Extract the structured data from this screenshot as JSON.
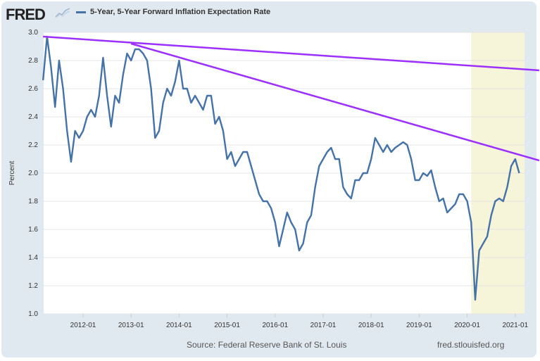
{
  "header": {
    "logo": "FRED",
    "logo_icon": "line-chart-icon"
  },
  "footer": {
    "source": "Source: Federal Reserve Bank of St. Louis",
    "site": "fred.stlouisfed.org"
  },
  "chart_data": {
    "type": "line",
    "title": "",
    "ylabel": "Percent",
    "xlabel": "",
    "ylim": [
      1.0,
      3.0
    ],
    "yticks": [
      "1.0",
      "1.2",
      "1.4",
      "1.6",
      "1.8",
      "2.0",
      "2.2",
      "2.4",
      "2.6",
      "2.8",
      "3.0"
    ],
    "xticks": [
      "2012-01",
      "2013-01",
      "2014-01",
      "2015-01",
      "2016-01",
      "2017-01",
      "2018-01",
      "2019-01",
      "2020-01",
      "2021-01"
    ],
    "xlim": [
      "2011-03",
      "2021-02"
    ],
    "grid": "horizontal",
    "legend": "top-left",
    "shaded_region": {
      "start": "2020-02",
      "end": "2021-02",
      "color": "#f6f5d9"
    },
    "colors": {
      "series": "#4572a7",
      "trendline": "#9b30ff"
    },
    "series": [
      {
        "name": "5-Year, 5-Year Forward Inflation Expectation Rate",
        "x": [
          "2011-03",
          "2011-04",
          "2011-05",
          "2011-06",
          "2011-07",
          "2011-08",
          "2011-09",
          "2011-10",
          "2011-11",
          "2011-12",
          "2012-01",
          "2012-02",
          "2012-03",
          "2012-04",
          "2012-05",
          "2012-06",
          "2012-07",
          "2012-08",
          "2012-09",
          "2012-10",
          "2012-11",
          "2012-12",
          "2013-01",
          "2013-02",
          "2013-03",
          "2013-04",
          "2013-05",
          "2013-06",
          "2013-07",
          "2013-08",
          "2013-09",
          "2013-10",
          "2013-11",
          "2013-12",
          "2014-01",
          "2014-02",
          "2014-03",
          "2014-04",
          "2014-05",
          "2014-06",
          "2014-07",
          "2014-08",
          "2014-09",
          "2014-10",
          "2014-11",
          "2014-12",
          "2015-01",
          "2015-02",
          "2015-03",
          "2015-04",
          "2015-05",
          "2015-06",
          "2015-07",
          "2015-08",
          "2015-09",
          "2015-10",
          "2015-11",
          "2015-12",
          "2016-01",
          "2016-02",
          "2016-03",
          "2016-04",
          "2016-05",
          "2016-06",
          "2016-07",
          "2016-08",
          "2016-09",
          "2016-10",
          "2016-11",
          "2016-12",
          "2017-01",
          "2017-02",
          "2017-03",
          "2017-04",
          "2017-05",
          "2017-06",
          "2017-07",
          "2017-08",
          "2017-09",
          "2017-10",
          "2017-11",
          "2017-12",
          "2018-01",
          "2018-02",
          "2018-03",
          "2018-04",
          "2018-05",
          "2018-06",
          "2018-07",
          "2018-08",
          "2018-09",
          "2018-10",
          "2018-11",
          "2018-12",
          "2019-01",
          "2019-02",
          "2019-03",
          "2019-04",
          "2019-05",
          "2019-06",
          "2019-07",
          "2019-08",
          "2019-09",
          "2019-10",
          "2019-11",
          "2019-12",
          "2020-01",
          "2020-02",
          "2020-03",
          "2020-04",
          "2020-05",
          "2020-06",
          "2020-07",
          "2020-08",
          "2020-09",
          "2020-10",
          "2020-11",
          "2020-12",
          "2021-01",
          "2021-02"
        ],
        "values": [
          2.66,
          2.97,
          2.75,
          2.47,
          2.8,
          2.6,
          2.3,
          2.08,
          2.3,
          2.25,
          2.3,
          2.4,
          2.45,
          2.4,
          2.55,
          2.82,
          2.55,
          2.33,
          2.55,
          2.5,
          2.7,
          2.85,
          2.8,
          2.88,
          2.88,
          2.85,
          2.8,
          2.6,
          2.25,
          2.3,
          2.5,
          2.6,
          2.55,
          2.65,
          2.8,
          2.6,
          2.6,
          2.5,
          2.55,
          2.5,
          2.45,
          2.55,
          2.55,
          2.35,
          2.4,
          2.3,
          2.1,
          2.15,
          2.05,
          2.1,
          2.15,
          2.15,
          2.05,
          1.95,
          1.85,
          1.8,
          1.8,
          1.75,
          1.65,
          1.48,
          1.6,
          1.72,
          1.65,
          1.6,
          1.45,
          1.5,
          1.65,
          1.7,
          1.9,
          2.05,
          2.1,
          2.15,
          2.18,
          2.1,
          2.1,
          1.9,
          1.85,
          1.82,
          1.95,
          1.95,
          2.0,
          2.0,
          2.1,
          2.25,
          2.2,
          2.15,
          2.2,
          2.15,
          2.18,
          2.2,
          2.22,
          2.2,
          2.1,
          1.95,
          1.95,
          2.0,
          1.98,
          2.02,
          1.9,
          1.8,
          1.82,
          1.72,
          1.75,
          1.78,
          1.85,
          1.85,
          1.8,
          1.65,
          1.1,
          1.45,
          1.5,
          1.55,
          1.7,
          1.8,
          1.82,
          1.8,
          1.9,
          2.05,
          2.1,
          2.0
        ]
      }
    ],
    "annotations": [
      {
        "type": "trendline",
        "from": [
          "2011-03",
          2.97
        ],
        "to": [
          "2021-07",
          2.73
        ]
      },
      {
        "type": "trendline",
        "from": [
          "2013-01",
          2.92
        ],
        "to": [
          "2021-07",
          2.09
        ]
      }
    ]
  }
}
